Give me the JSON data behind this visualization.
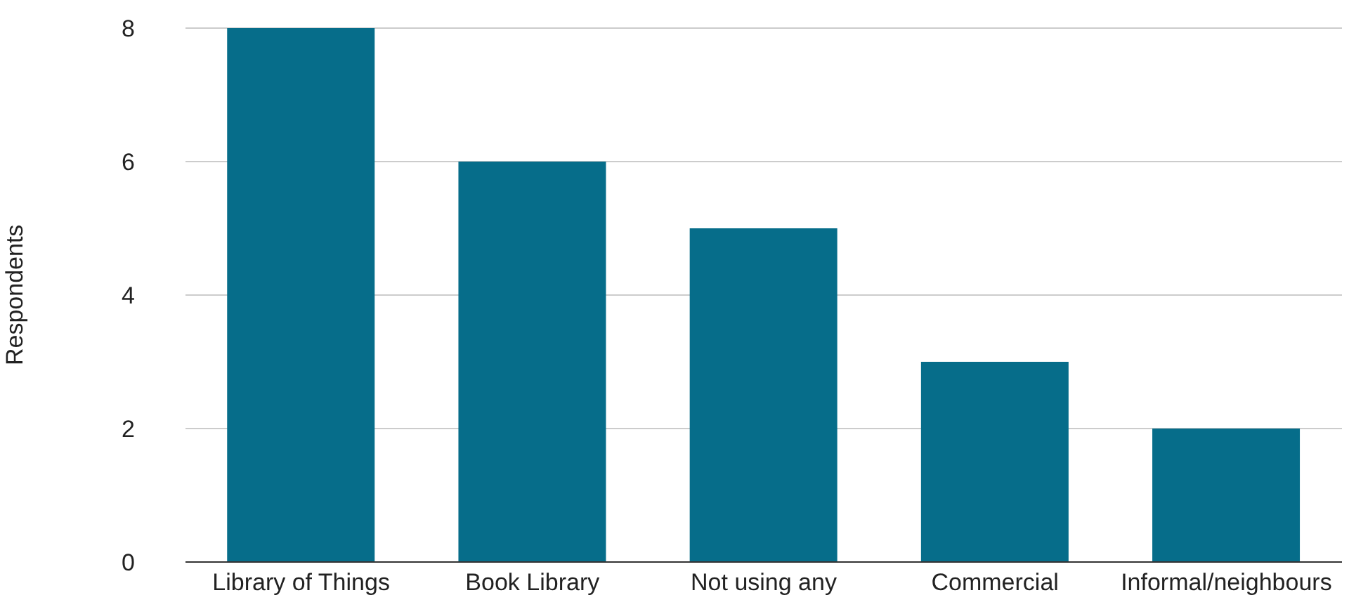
{
  "chart_data": {
    "type": "bar",
    "ylabel": "Respondents",
    "categories": [
      "Library of Things",
      "Book Library",
      "Not using any",
      "Commercial",
      "Informal/neighbours"
    ],
    "values": [
      8,
      6,
      5,
      3,
      2
    ],
    "color": "#066d8a",
    "ylim": [
      0,
      8
    ],
    "yticks": [
      0,
      2,
      4,
      6,
      8
    ],
    "grid": "y"
  }
}
